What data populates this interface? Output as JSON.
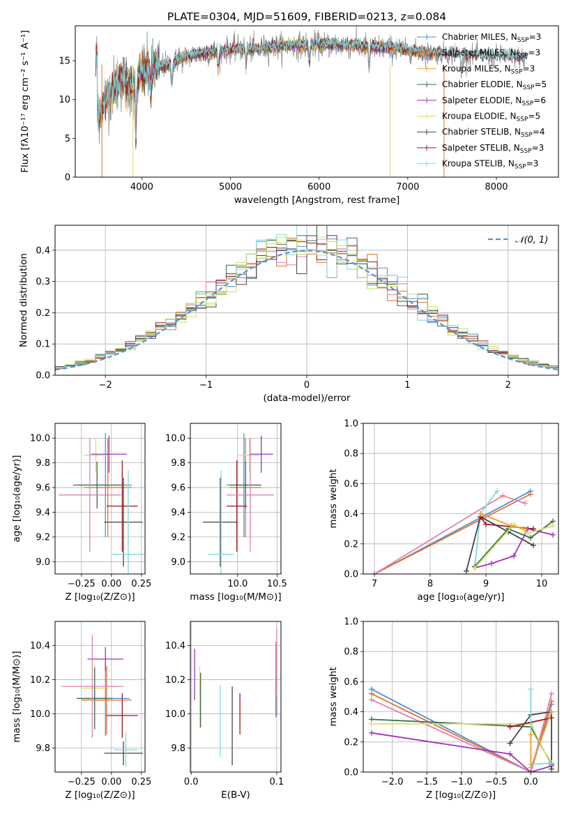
{
  "suptitle": "PLATE=0304, MJD=51609, FIBERID=0213, z=0.084",
  "colors": {
    "Chabrier MILES": "#4a90d9",
    "Salpeter MILES": "#e8702a",
    "Kroupa MILES": "#f0a030",
    "Chabrier ELODIE": "#3a6b4a",
    "Salpeter ELODIE": "#a030c0",
    "Kroupa ELODIE": "#d8e060",
    "Chabrier STELIB": "#444444",
    "Salpeter STELIB": "#a01818",
    "Kroupa STELIB": "#80d8e0",
    "extra_pink": "#e080b0",
    "extra_lime": "#b8e060",
    "normal": "#5a8fd8",
    "data": "#808080"
  },
  "chart_data": [
    {
      "type": "line",
      "name": "spectrum",
      "xlabel": "wavelength [Angstrom, rest frame]",
      "ylabel": "Flux [fλ10⁻¹⁷ erg cm⁻² s⁻¹ A⁻¹]",
      "xlim": [
        3250,
        8700
      ],
      "ylim": [
        0,
        19.5
      ],
      "xticks": [
        "4000",
        "5000",
        "6000",
        "7000",
        "8000"
      ],
      "yticks": [
        "0",
        "5",
        "10",
        "15"
      ],
      "legend_position": "upper-right",
      "legend": [
        {
          "label": "Chabrier MILES, N",
          "sub": "SSP",
          "suffix": "=3"
        },
        {
          "label": "Salpeter MILES, N",
          "sub": "SSP",
          "suffix": "=3"
        },
        {
          "label": "Kroupa MILES, N",
          "sub": "SSP",
          "suffix": "=3"
        },
        {
          "label": "Chabrier ELODIE, N",
          "sub": "SSP",
          "suffix": "=5"
        },
        {
          "label": "Salpeter ELODIE, N",
          "sub": "SSP",
          "suffix": "=6"
        },
        {
          "label": "Kroupa ELODIE, N",
          "sub": "SSP",
          "suffix": "=5"
        },
        {
          "label": "Chabrier STELIB, N",
          "sub": "SSP",
          "suffix": "=4"
        },
        {
          "label": "Salpeter STELIB, N",
          "sub": "SSP",
          "suffix": "=3"
        },
        {
          "label": "Kroupa STELIB, N",
          "sub": "SSP",
          "suffix": "=3"
        }
      ],
      "continuum": {
        "x": [
          3500,
          3600,
          3700,
          3800,
          3900,
          4000,
          4100,
          4300,
          4500,
          4700,
          4900,
          5100,
          5300,
          5500,
          5700,
          5900,
          6100,
          6300,
          6500,
          6700,
          6900,
          7100,
          7300,
          7500,
          7700,
          7900,
          8100,
          8300
        ],
        "y": [
          8.0,
          10.0,
          12.0,
          12.5,
          11.5,
          13.5,
          14.0,
          14.5,
          15.5,
          16.0,
          16.3,
          16.6,
          16.5,
          16.8,
          17.0,
          17.0,
          17.1,
          17.0,
          16.9,
          16.7,
          16.5,
          16.2,
          16.0,
          15.9,
          15.7,
          15.6,
          15.6,
          15.4
        ]
      },
      "features": [
        {
          "x": 3934,
          "y": 5.0
        },
        {
          "x": 4102,
          "y": 10.5
        },
        {
          "x": 4340,
          "y": 12.0
        },
        {
          "x": 4861,
          "y": 14.0
        },
        {
          "x": 5175,
          "y": 14.5
        },
        {
          "x": 5890,
          "y": 14.8
        },
        {
          "x": 6563,
          "y": 14.0
        },
        {
          "x": 7605,
          "y": 13.5
        }
      ],
      "model_dropouts": [
        {
          "series": "Kroupa ELODIE",
          "x": 3900
        },
        {
          "series": "Kroupa ELODIE",
          "x": 6800
        },
        {
          "series": "Salpeter MILES",
          "x": 7410
        },
        {
          "series": "Salpeter MILES",
          "x": 3550
        }
      ]
    },
    {
      "type": "histogram",
      "name": "residuals",
      "xlabel": "(data-model)/error",
      "ylabel": "Normed distribution",
      "xlim": [
        -2.5,
        2.5
      ],
      "ylim": [
        0,
        0.48
      ],
      "xticks": [
        "−2",
        "−1",
        "0",
        "1",
        "2"
      ],
      "yticks": [
        "0.0",
        "0.1",
        "0.2",
        "0.3",
        "0.4"
      ],
      "grid": true,
      "legend": [
        {
          "label": "𝒩(0, 1)",
          "style": "dashed"
        }
      ],
      "bin_width": 0.1
    },
    {
      "type": "errorbar",
      "name": "age-vs-Z",
      "xlabel": "Z [log₁₀(Z/Z⊙)]",
      "ylabel": "age  [log₁₀(age/yr)]",
      "xlim": [
        -0.47,
        0.28
      ],
      "ylim": [
        8.9,
        10.12
      ],
      "xticks": [
        "−0.25",
        "0.00",
        "0.25"
      ],
      "yticks": [
        "9.0",
        "9.2",
        "9.4",
        "9.6",
        "9.8",
        "10.0"
      ],
      "grid": true,
      "points": [
        {
          "series": "Chabrier MILES",
          "x": -0.05,
          "xerr": 0.22,
          "y": 9.62,
          "yerr": 0.42
        },
        {
          "series": "Salpeter MILES",
          "x": -0.03,
          "xerr": 0.2,
          "y": 9.6,
          "yerr": 0.4
        },
        {
          "series": "Kroupa ELODIE",
          "x": -0.13,
          "xerr": 0.1,
          "y": 9.86,
          "yerr": 0.14
        },
        {
          "series": "Chabrier ELODIE",
          "x": -0.12,
          "xerr": 0.2,
          "y": 9.62,
          "yerr": 0.19
        },
        {
          "series": "Salpeter ELODIE",
          "x": -0.02,
          "xerr": 0.15,
          "y": 9.87,
          "yerr": 0.15
        },
        {
          "series": "Salpeter STELIB",
          "x": 0.09,
          "xerr": 0.13,
          "y": 9.45,
          "yerr": 0.37
        },
        {
          "series": "Chabrier STELIB",
          "x": 0.1,
          "xerr": 0.16,
          "y": 9.32,
          "yerr": 0.36
        },
        {
          "series": "Kroupa STELIB",
          "x": 0.14,
          "xerr": 0.14,
          "y": 9.06,
          "yerr": 0.68
        },
        {
          "series": "extra_pink",
          "x": -0.18,
          "xerr": 0.26,
          "y": 9.54,
          "yerr": 0.46
        }
      ]
    },
    {
      "type": "errorbar",
      "name": "age-vs-mass",
      "xlabel": "mass [log₁₀(M/M⊙)]",
      "ylabel": "",
      "xlim": [
        9.4,
        10.55
      ],
      "ylim": [
        8.9,
        10.12
      ],
      "xticks": [
        "10.0",
        "10.5"
      ],
      "yticks": [
        "9.0",
        "9.2",
        "9.4",
        "9.6",
        "9.8",
        "10.0"
      ],
      "grid": true,
      "points": [
        {
          "series": "Chabrier MILES",
          "x": 10.08,
          "xerr": 0.22,
          "y": 9.62,
          "yerr": 0.42
        },
        {
          "series": "Salpeter MILES",
          "x": 10.1,
          "xerr": 0.2,
          "y": 9.6,
          "yerr": 0.4
        },
        {
          "series": "Kroupa ELODIE",
          "x": 10.15,
          "xerr": 0.14,
          "y": 9.86,
          "yerr": 0.14
        },
        {
          "series": "Chabrier ELODIE",
          "x": 10.1,
          "xerr": 0.2,
          "y": 9.62,
          "yerr": 0.19
        },
        {
          "series": "Salpeter ELODIE",
          "x": 10.3,
          "xerr": 0.15,
          "y": 9.87,
          "yerr": 0.15
        },
        {
          "series": "Salpeter STELIB",
          "x": 9.99,
          "xerr": 0.13,
          "y": 9.45,
          "yerr": 0.37
        },
        {
          "series": "Chabrier STELIB",
          "x": 9.78,
          "xerr": 0.22,
          "y": 9.32,
          "yerr": 0.36
        },
        {
          "series": "Kroupa STELIB",
          "x": 9.79,
          "xerr": 0.16,
          "y": 9.06,
          "yerr": 0.68
        },
        {
          "series": "extra_pink",
          "x": 10.16,
          "xerr": 0.3,
          "y": 9.54,
          "yerr": 0.46
        }
      ]
    },
    {
      "type": "line",
      "name": "mass-weight-vs-age",
      "xlabel": "age  [log₁₀(age/yr)]",
      "ylabel": "mass weight",
      "xlim": [
        6.8,
        10.3
      ],
      "ylim": [
        0,
        1.0
      ],
      "xticks": [
        "7",
        "8",
        "9",
        "10"
      ],
      "yticks": [
        "0.0",
        "0.2",
        "0.4",
        "0.6",
        "0.8",
        "1.0"
      ],
      "grid": true,
      "series": [
        {
          "name": "Chabrier MILES",
          "x": [
            7.0,
            9.8
          ],
          "y": [
            0.0,
            0.55
          ]
        },
        {
          "name": "Salpeter MILES",
          "x": [
            7.0,
            9.8
          ],
          "y": [
            0.0,
            0.53
          ]
        },
        {
          "name": "extra_pink",
          "x": [
            7.0,
            9.3,
            9.7
          ],
          "y": [
            0.0,
            0.52,
            0.47
          ]
        },
        {
          "name": "Kroupa STELIB",
          "x": [
            8.8,
            8.9,
            9.2
          ],
          "y": [
            0.05,
            0.4,
            0.55
          ]
        },
        {
          "name": "Chabrier STELIB",
          "x": [
            8.65,
            8.9,
            9.4,
            9.85
          ],
          "y": [
            0.02,
            0.38,
            0.28,
            0.19
          ]
        },
        {
          "name": "Salpeter STELIB",
          "x": [
            8.9,
            9.0,
            9.85
          ],
          "y": [
            0.38,
            0.33,
            0.3
          ]
        },
        {
          "name": "Salpeter ELODIE",
          "x": [
            8.8,
            9.1,
            9.5,
            9.75,
            10.2
          ],
          "y": [
            0.04,
            0.07,
            0.12,
            0.3,
            0.26
          ]
        },
        {
          "name": "Chabrier ELODIE",
          "x": [
            8.8,
            9.4,
            9.8,
            10.2
          ],
          "y": [
            0.05,
            0.3,
            0.24,
            0.35
          ]
        },
        {
          "name": "Kroupa ELODIE",
          "x": [
            8.8,
            9.5,
            9.75,
            10.2
          ],
          "y": [
            0.04,
            0.33,
            0.27,
            0.32
          ]
        },
        {
          "name": "Kroupa MILES",
          "x": [
            8.9,
            9.45,
            9.7
          ],
          "y": [
            0.4,
            0.32,
            0.3
          ]
        }
      ]
    },
    {
      "type": "errorbar",
      "name": "mass-vs-Z",
      "xlabel": "Z [log₁₀(Z/Z⊙)]",
      "ylabel": "mass [log₁₀(M/M⊙)]",
      "xlim": [
        -0.47,
        0.28
      ],
      "ylim": [
        9.66,
        10.54
      ],
      "xticks": [
        "−0.25",
        "0.00",
        "0.25"
      ],
      "yticks": [
        "9.8",
        "10.0",
        "10.2",
        "10.4"
      ],
      "grid": true,
      "points": [
        {
          "series": "Chabrier MILES",
          "x": -0.05,
          "xerr": 0.2,
          "y": 10.09,
          "yerr": 0.22
        },
        {
          "series": "Salpeter MILES",
          "x": -0.04,
          "xerr": 0.21,
          "y": 10.08,
          "yerr": 0.2
        },
        {
          "series": "Kroupa ELODIE",
          "x": -0.14,
          "xerr": 0.1,
          "y": 10.15,
          "yerr": 0.14
        },
        {
          "series": "Chabrier ELODIE",
          "x": -0.14,
          "xerr": 0.15,
          "y": 10.09,
          "yerr": 0.18
        },
        {
          "series": "Salpeter ELODIE",
          "x": -0.05,
          "xerr": 0.15,
          "y": 10.32,
          "yerr": 0.07
        },
        {
          "series": "Salpeter STELIB",
          "x": 0.09,
          "xerr": 0.13,
          "y": 9.99,
          "yerr": 0.13
        },
        {
          "series": "Chabrier STELIB",
          "x": 0.1,
          "xerr": 0.16,
          "y": 9.77,
          "yerr": 0.07
        },
        {
          "series": "Kroupa STELIB",
          "x": 0.12,
          "xerr": 0.1,
          "y": 9.79,
          "yerr": 0.1
        },
        {
          "series": "extra_pink",
          "x": -0.16,
          "xerr": 0.26,
          "y": 10.16,
          "yerr": 0.3
        }
      ]
    },
    {
      "type": "errorbar",
      "name": "mass-vs-EBV",
      "xlabel": "E(B-V)",
      "ylabel": "",
      "xlim": [
        -0.001,
        0.105
      ],
      "ylim": [
        9.66,
        10.54
      ],
      "xticks": [
        "0.0",
        "0.1"
      ],
      "yticks": [
        "9.8",
        "10.0",
        "10.2",
        "10.4"
      ],
      "grid": true,
      "points": [
        {
          "series": "Salpeter ELODIE",
          "x": 0.004,
          "y": 10.23,
          "yerr": 0.15
        },
        {
          "series": "Kroupa ELODIE",
          "x": 0.01,
          "y": 10.1,
          "yerr": 0.18
        },
        {
          "series": "Chabrier ELODIE",
          "x": 0.011,
          "y": 10.08,
          "yerr": 0.16
        },
        {
          "series": "Kroupa STELIB",
          "x": 0.034,
          "y": 9.96,
          "yerr": 0.21
        },
        {
          "series": "Chabrier STELIB",
          "x": 0.048,
          "y": 9.93,
          "yerr": 0.23
        },
        {
          "series": "Salpeter STELIB",
          "x": 0.057,
          "y": 10.0,
          "yerr": 0.12
        },
        {
          "series": "Salpeter MILES",
          "x": 0.099,
          "y": 10.2,
          "yerr": 0.22
        },
        {
          "series": "Chabrier MILES",
          "x": 0.1,
          "y": 10.12,
          "yerr": 0.13
        },
        {
          "series": "extra_pink",
          "x": 0.1,
          "y": 10.3,
          "yerr": 0.2
        }
      ]
    },
    {
      "type": "line",
      "name": "mass-weight-vs-Z",
      "xlabel": "Z [log₁₀(Z/Z⊙)]",
      "ylabel": "mass weight",
      "xlim": [
        -2.42,
        0.4
      ],
      "ylim": [
        0,
        1.0
      ],
      "xticks": [
        "−2.0",
        "−1.5",
        "−1.0",
        "−0.5",
        "0.0"
      ],
      "yticks": [
        "0.0",
        "0.2",
        "0.4",
        "0.6",
        "0.8",
        "1.0"
      ],
      "grid": true,
      "series": [
        {
          "name": "Chabrier MILES",
          "x": [
            -2.3,
            0.0,
            0.3
          ],
          "y": [
            0.55,
            0.0,
            0.45
          ]
        },
        {
          "name": "Salpeter MILES",
          "x": [
            -2.3,
            0.0,
            0.3
          ],
          "y": [
            0.52,
            0.0,
            0.47
          ]
        },
        {
          "name": "extra_pink",
          "x": [
            -2.3,
            0.0,
            0.3
          ],
          "y": [
            0.48,
            0.0,
            0.52
          ]
        },
        {
          "name": "Chabrier ELODIE",
          "x": [
            -2.3,
            0.0,
            0.3
          ],
          "y": [
            0.35,
            0.3,
            0.05
          ]
        },
        {
          "name": "Kroupa ELODIE",
          "x": [
            -2.3,
            0.0,
            0.3
          ],
          "y": [
            0.32,
            0.32,
            0.04
          ]
        },
        {
          "name": "Salpeter ELODIE",
          "x": [
            -2.3,
            -0.3,
            0.0,
            0.3
          ],
          "y": [
            0.26,
            0.12,
            0.0,
            0.04
          ]
        },
        {
          "name": "Chabrier STELIB",
          "x": [
            -0.3,
            0.0,
            0.3,
            0.3
          ],
          "y": [
            0.19,
            0.38,
            0.4,
            0.02
          ]
        },
        {
          "name": "Salpeter STELIB",
          "x": [
            -0.3,
            0.0,
            0.3
          ],
          "y": [
            0.3,
            0.33,
            0.36
          ]
        },
        {
          "name": "Kroupa STELIB",
          "x": [
            0.0,
            0.0,
            0.3
          ],
          "y": [
            0.55,
            0.05,
            0.06
          ]
        },
        {
          "name": "Kroupa MILES",
          "x": [
            0.0,
            0.0,
            0.3
          ],
          "y": [
            0.25,
            0.03,
            0.4
          ]
        }
      ]
    }
  ]
}
